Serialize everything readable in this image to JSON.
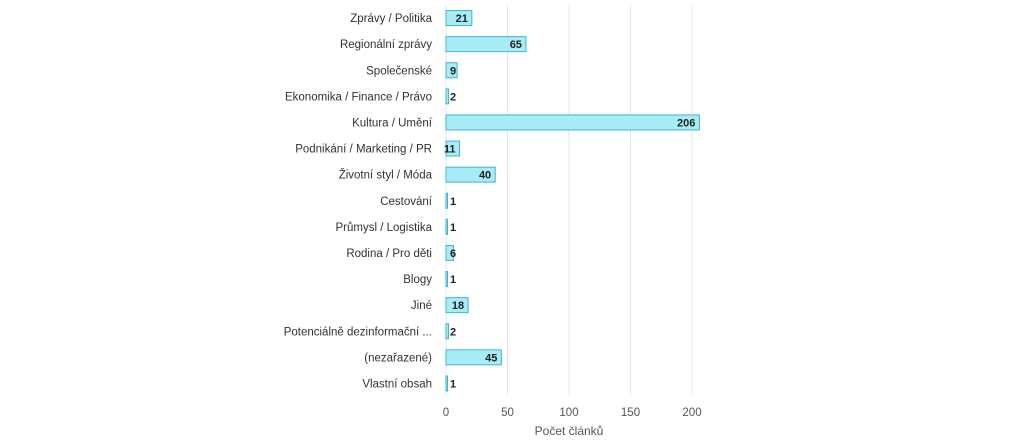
{
  "chart_data": {
    "type": "bar",
    "orientation": "horizontal",
    "categories": [
      "Zprávy / Politika",
      "Regionální zprávy",
      "Společenské",
      "Ekonomika / Finance / Právo",
      "Kultura / Umění",
      "Podnikání / Marketing / PR",
      "Životní styl / Móda",
      "Cestování",
      "Průmysl / Logistika",
      "Rodina / Pro děti",
      "Blogy",
      "Jiné",
      "Potenciálně dezinformační ...",
      "(nezařazené)",
      "Vlastní obsah"
    ],
    "values": [
      21,
      65,
      9,
      2,
      206,
      11,
      40,
      1,
      1,
      6,
      1,
      18,
      2,
      45,
      1
    ],
    "xlabel": "Počet článků",
    "ylabel": "",
    "xlim": [
      0,
      210
    ],
    "xticks": [
      0,
      50,
      100,
      150,
      200
    ],
    "grid": true,
    "colors": {
      "bar_fill": "#a8ecf8",
      "bar_stroke": "#3fb6cf",
      "grid": "#e4e4e4"
    }
  }
}
